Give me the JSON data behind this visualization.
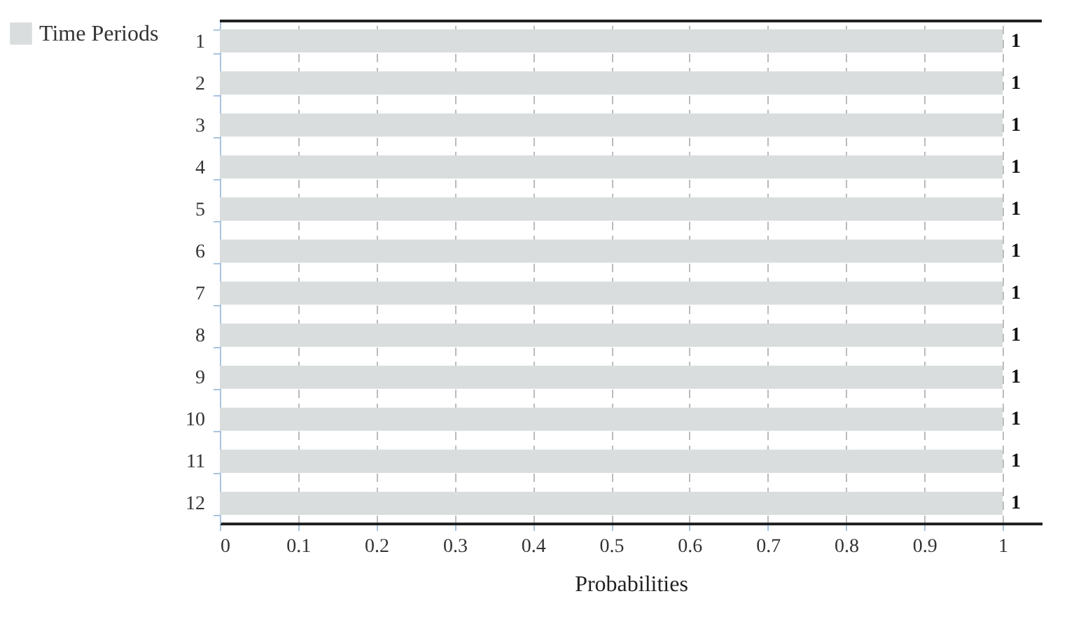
{
  "chart_data": {
    "type": "bar",
    "orientation": "horizontal",
    "categories": [
      "1",
      "2",
      "3",
      "4",
      "5",
      "6",
      "7",
      "8",
      "9",
      "10",
      "11",
      "12"
    ],
    "series": [
      {
        "name": "Time Periods",
        "color": "#d9dddd",
        "values": [
          1,
          1,
          1,
          1,
          1,
          1,
          1,
          1,
          1,
          1,
          1,
          1
        ]
      }
    ],
    "xlabel": "Probabilities",
    "xlim": [
      0,
      1.05
    ],
    "xticks": [
      0,
      0.1,
      0.2,
      0.3,
      0.4,
      0.5,
      0.6,
      0.7,
      0.8,
      0.9,
      1
    ],
    "grid": "x",
    "legend": "left",
    "data_labels": true
  }
}
